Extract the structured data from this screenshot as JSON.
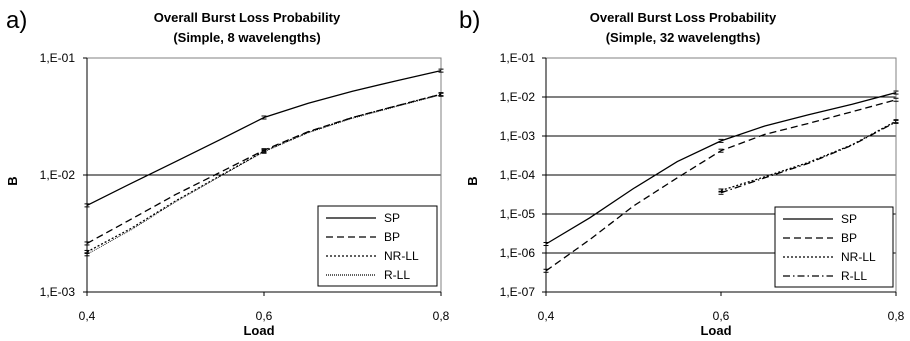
{
  "chart_data": [
    {
      "type": "line",
      "panel_letter": "a)",
      "title": "Overall Burst Loss Probability",
      "subtitle": "(Simple, 8 wavelengths)",
      "xlabel": "Load",
      "ylabel": "B",
      "y_scale": "log",
      "xlim": [
        0.4,
        0.8
      ],
      "ylim": [
        0.001,
        0.1
      ],
      "x_tick_labels": [
        "0,4",
        "0,6",
        "0,8"
      ],
      "x_tick_values": [
        0.4,
        0.6,
        0.8
      ],
      "y_tick_labels": [
        "1,E-03",
        "1,E-02",
        "1,E-01"
      ],
      "y_tick_values": [
        0.001,
        0.01,
        0.1
      ],
      "gridlines": "horizontal",
      "legend_position": "bottom-right",
      "series": [
        {
          "name": "SP",
          "dash": "",
          "x": [
            0.4,
            0.45,
            0.5,
            0.55,
            0.6,
            0.65,
            0.7,
            0.75,
            0.8
          ],
          "y": [
            0.0055,
            0.0085,
            0.013,
            0.02,
            0.031,
            0.041,
            0.052,
            0.064,
            0.078
          ]
        },
        {
          "name": "BP",
          "dash": "7,4",
          "x": [
            0.4,
            0.45,
            0.5,
            0.55,
            0.6,
            0.65,
            0.7,
            0.75,
            0.8
          ],
          "y": [
            0.0026,
            0.0042,
            0.0068,
            0.0105,
            0.0163,
            0.0235,
            0.031,
            0.039,
            0.049
          ]
        },
        {
          "name": "NR-LL",
          "dash": "2,2",
          "x": [
            0.4,
            0.45,
            0.5,
            0.55,
            0.6,
            0.65,
            0.7,
            0.75,
            0.8
          ],
          "y": [
            0.0022,
            0.0035,
            0.006,
            0.0098,
            0.016,
            0.0232,
            0.031,
            0.039,
            0.049
          ]
        },
        {
          "name": "R-LL",
          "dash": "1,1",
          "x": [
            0.4,
            0.45,
            0.5,
            0.55,
            0.6,
            0.65,
            0.7,
            0.75,
            0.8
          ],
          "y": [
            0.0021,
            0.0034,
            0.0059,
            0.0097,
            0.0158,
            0.023,
            0.0305,
            0.0385,
            0.0485
          ]
        }
      ]
    },
    {
      "type": "line",
      "panel_letter": "b)",
      "title": "Overall Burst Loss Probability",
      "subtitle": "(Simple, 32 wavelengths)",
      "xlabel": "Load",
      "ylabel": "B",
      "y_scale": "log",
      "xlim": [
        0.4,
        0.8
      ],
      "ylim": [
        1e-07,
        0.1
      ],
      "x_tick_labels": [
        "0,4",
        "0,6",
        "0,8"
      ],
      "x_tick_values": [
        0.4,
        0.6,
        0.8
      ],
      "y_tick_labels": [
        "1,E-07",
        "1,E-06",
        "1,E-05",
        "1,E-04",
        "1,E-03",
        "1,E-02",
        "1,E-01"
      ],
      "y_tick_values": [
        1e-07,
        1e-06,
        1e-05,
        0.0001,
        0.001,
        0.01,
        0.1
      ],
      "gridlines": "horizontal",
      "legend_position": "bottom-right",
      "series": [
        {
          "name": "SP",
          "dash": "",
          "x": [
            0.4,
            0.45,
            0.5,
            0.55,
            0.6,
            0.65,
            0.7,
            0.75,
            0.8
          ],
          "y": [
            1.7e-06,
            8e-06,
            4.5e-05,
            0.00022,
            0.00075,
            0.0018,
            0.0035,
            0.0065,
            0.013
          ]
        },
        {
          "name": "BP",
          "dash": "7,4",
          "x": [
            0.4,
            0.45,
            0.5,
            0.55,
            0.6,
            0.65,
            0.7,
            0.75,
            0.8
          ],
          "y": [
            3.5e-07,
            2.2e-06,
            1.6e-05,
            8.5e-05,
            0.00042,
            0.0011,
            0.0021,
            0.0042,
            0.0085
          ]
        },
        {
          "name": "NR-LL",
          "dash": "2,2",
          "x": [
            0.6,
            0.65,
            0.7,
            0.75,
            0.8
          ],
          "y": [
            4e-05,
            9e-05,
            0.00021,
            0.0006,
            0.0024
          ]
        },
        {
          "name": "R-LL",
          "dash": "7,3,1.5,3",
          "x": [
            0.6,
            0.65,
            0.7,
            0.75,
            0.8
          ],
          "y": [
            3.5e-05,
            8.5e-05,
            0.0002,
            0.00058,
            0.0023
          ]
        }
      ]
    }
  ]
}
